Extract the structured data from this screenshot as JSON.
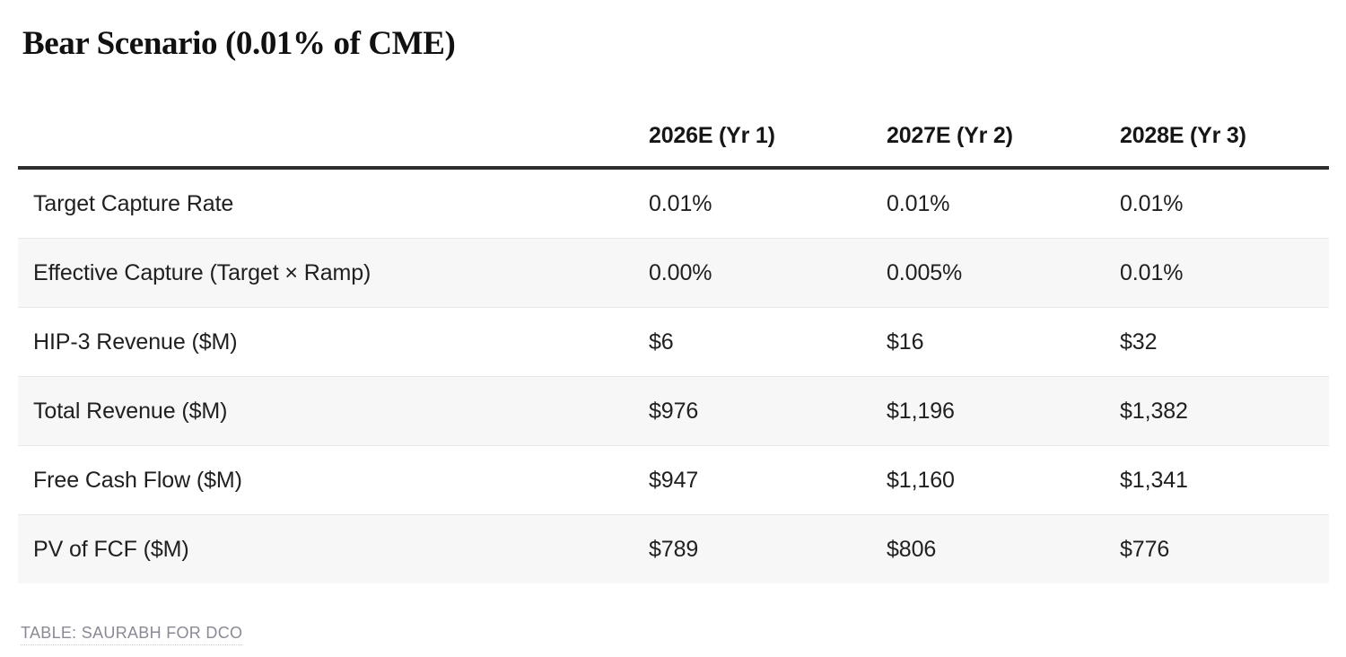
{
  "page": {
    "title": "Bear Scenario (0.01% of CME)"
  },
  "chart_data": {
    "type": "table",
    "title": "Bear Scenario (0.01% of CME)",
    "columns": [
      "2026E (Yr 1)",
      "2027E (Yr 2)",
      "2028E (Yr 3)"
    ],
    "rows": [
      {
        "label": "Target Capture Rate",
        "values": [
          "0.01%",
          "0.01%",
          "0.01%"
        ]
      },
      {
        "label": "Effective Capture (Target × Ramp)",
        "values": [
          "0.00%",
          "0.005%",
          "0.01%"
        ]
      },
      {
        "label": "HIP-3 Revenue ($M)",
        "values": [
          "$6",
          "$16",
          "$32"
        ]
      },
      {
        "label": "Total Revenue ($M)",
        "values": [
          "$976",
          "$1,196",
          "$1,382"
        ]
      },
      {
        "label": "Free Cash Flow ($M)",
        "values": [
          "$947",
          "$1,160",
          "$1,341"
        ]
      },
      {
        "label": "PV of FCF ($M)",
        "values": [
          "$789",
          "$806",
          "$776"
        ]
      }
    ],
    "attribution": "TABLE: SAURABH FOR DCO",
    "layout": {
      "striped": true,
      "legend_position": "none",
      "grid": "row-separators"
    }
  },
  "colors": {
    "header_rule": "#2e2e2e",
    "stripe": "#f7f7f7",
    "row_separator": "#e8e8e8",
    "text": "#1d1d1d",
    "attribution_text": "#8c8996"
  }
}
